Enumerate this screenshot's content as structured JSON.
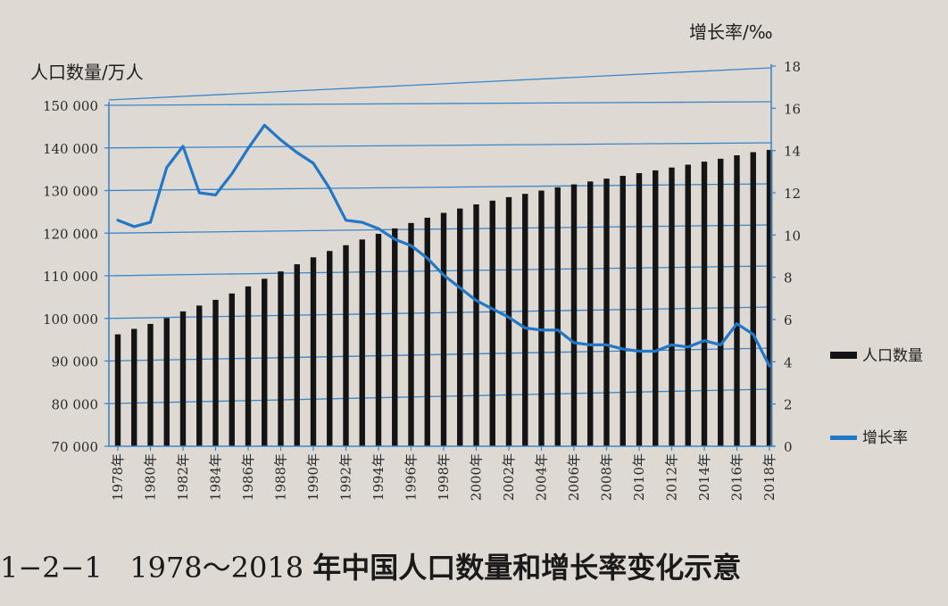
{
  "caption": {
    "label": "1−2−1",
    "range": "1978～2018",
    "title": "年中国人口数量和增长率变化示意"
  },
  "chart_data": {
    "type": "bar+line",
    "x_ticks": [
      "1978年",
      "1980年",
      "1982年",
      "1984年",
      "1986年",
      "1988年",
      "1990年",
      "1992年",
      "1994年",
      "1996年",
      "1998年",
      "2000年",
      "2002年",
      "2004年",
      "2006年",
      "2008年",
      "2010年",
      "2012年",
      "2014年",
      "2016年",
      "2018年"
    ],
    "years": [
      1978,
      1979,
      1980,
      1981,
      1982,
      1983,
      1984,
      1985,
      1986,
      1987,
      1988,
      1989,
      1990,
      1991,
      1992,
      1993,
      1994,
      1995,
      1996,
      1997,
      1998,
      1999,
      2000,
      2001,
      2002,
      2003,
      2004,
      2005,
      2006,
      2007,
      2008,
      2009,
      2010,
      2011,
      2012,
      2013,
      2014,
      2015,
      2016,
      2017,
      2018
    ],
    "left_axis": {
      "title": "人口数量/万人",
      "ylim": [
        70000,
        150000
      ],
      "ticks": [
        "70 000",
        "80 000",
        "90 000",
        "100 000",
        "110 000",
        "120 000",
        "130 000",
        "140 000",
        "150 000"
      ]
    },
    "right_axis": {
      "title": "增长率/‰",
      "ylim": [
        0,
        18
      ],
      "ticks": [
        "0",
        "2",
        "4",
        "6",
        "8",
        "10",
        "12",
        "14",
        "16",
        "18"
      ]
    },
    "series": [
      {
        "name": "人口数量",
        "type": "bar",
        "axis": "left",
        "color": "#141414",
        "values": [
          96259,
          97542,
          98705,
          100072,
          101654,
          103008,
          104357,
          105851,
          107507,
          109300,
          111026,
          112704,
          114333,
          115823,
          117171,
          118517,
          119850,
          121121,
          122389,
          123626,
          124761,
          125786,
          126743,
          127627,
          128453,
          129227,
          129988,
          130756,
          131448,
          132129,
          132802,
          133450,
          134091,
          134735,
          135404,
          136072,
          136782,
          137462,
          138271,
          139008,
          139538
        ]
      },
      {
        "name": "增长率",
        "type": "line",
        "axis": "right",
        "color": "#2277c6",
        "values": [
          10.7,
          10.4,
          10.6,
          13.2,
          14.2,
          12.0,
          11.9,
          12.9,
          14.1,
          15.2,
          14.5,
          13.9,
          13.4,
          12.2,
          10.7,
          10.6,
          10.3,
          9.8,
          9.5,
          8.9,
          8.1,
          7.5,
          6.9,
          6.5,
          6.1,
          5.6,
          5.5,
          5.5,
          4.9,
          4.8,
          4.8,
          4.6,
          4.5,
          4.5,
          4.8,
          4.7,
          5.0,
          4.8,
          5.8,
          5.3,
          3.8
        ]
      }
    ],
    "grid": true,
    "legend": "right"
  }
}
